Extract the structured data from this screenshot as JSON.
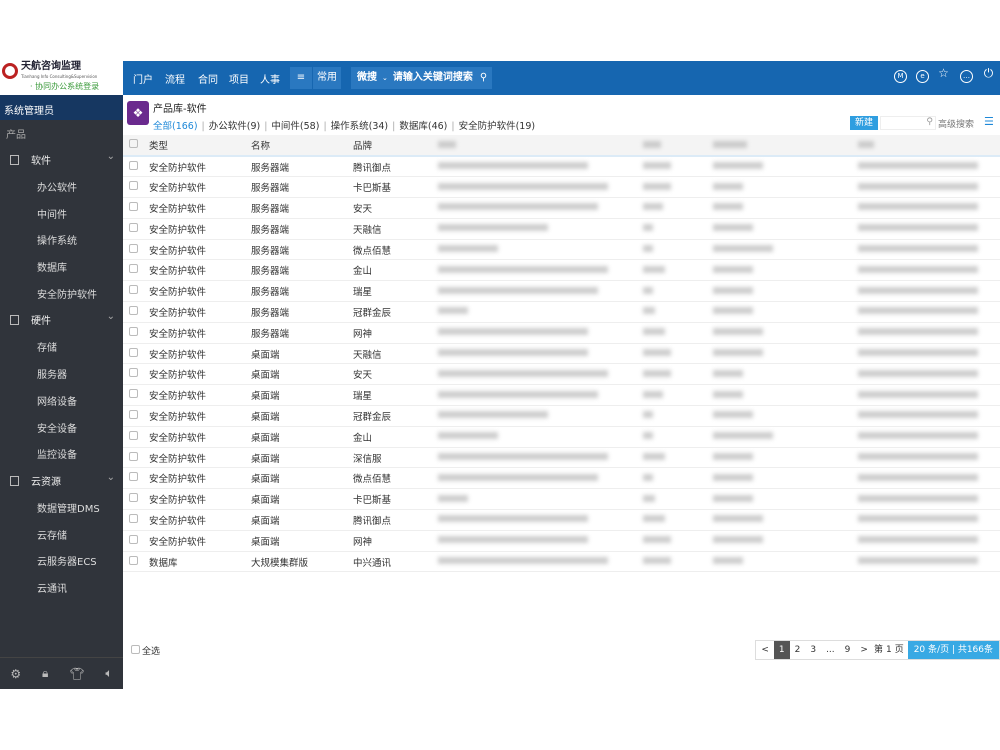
{
  "logo": {
    "name": "天航咨询监理",
    "subtitle": "Tianhang Info Consulting&Supervision",
    "tagline": "· 协同办公系统登录"
  },
  "topnav": {
    "items": [
      "门户",
      "流程",
      "合同",
      "项目",
      "人事"
    ],
    "menu_icon": "list-icon",
    "common": "常用",
    "search_scope": "微搜",
    "search_placeholder": "请输入关键词搜索",
    "right_icons": [
      "m-icon",
      "e-icon",
      "star-icon",
      "message-icon",
      "power-icon"
    ]
  },
  "sidebar": {
    "user": "系统管理员",
    "section": "产品",
    "groups": [
      {
        "label": "软件",
        "items": [
          "办公软件",
          "中间件",
          "操作系统",
          "数据库",
          "安全防护软件"
        ]
      },
      {
        "label": "硬件",
        "items": [
          "存储",
          "服务器",
          "网络设备",
          "安全设备",
          "监控设备"
        ]
      },
      {
        "label": "云资源",
        "items": [
          "数据管理DMS",
          "云存储",
          "云服务器ECS",
          "云通讯"
        ]
      }
    ],
    "bottom_icons": [
      "settings-icon",
      "lock-icon",
      "shirt-icon",
      "speaker-icon"
    ]
  },
  "page": {
    "title": "产品库-软件",
    "tabs": [
      "全部(166)",
      "办公软件(9)",
      "中间件(58)",
      "操作系统(34)",
      "数据库(46)",
      "安全防护软件(19)"
    ],
    "new_label": "新建",
    "adv_search": "高级搜索"
  },
  "table": {
    "headers": [
      "类型",
      "名称",
      "品牌"
    ],
    "rows": [
      [
        "安全防护软件",
        "服务器端",
        "腾讯御点"
      ],
      [
        "安全防护软件",
        "服务器端",
        "卡巴斯基"
      ],
      [
        "安全防护软件",
        "服务器端",
        "安天"
      ],
      [
        "安全防护软件",
        "服务器端",
        "天融信"
      ],
      [
        "安全防护软件",
        "服务器端",
        "微点佰慧"
      ],
      [
        "安全防护软件",
        "服务器端",
        "金山"
      ],
      [
        "安全防护软件",
        "服务器端",
        "瑞星"
      ],
      [
        "安全防护软件",
        "服务器端",
        "冠群金辰"
      ],
      [
        "安全防护软件",
        "服务器端",
        "网神"
      ],
      [
        "安全防护软件",
        "桌面端",
        "天融信"
      ],
      [
        "安全防护软件",
        "桌面端",
        "安天"
      ],
      [
        "安全防护软件",
        "桌面端",
        "瑞星"
      ],
      [
        "安全防护软件",
        "桌面端",
        "冠群金辰"
      ],
      [
        "安全防护软件",
        "桌面端",
        "金山"
      ],
      [
        "安全防护软件",
        "桌面端",
        "深信服"
      ],
      [
        "安全防护软件",
        "桌面端",
        "微点佰慧"
      ],
      [
        "安全防护软件",
        "桌面端",
        "卡巴斯基"
      ],
      [
        "安全防护软件",
        "桌面端",
        "腾讯御点"
      ],
      [
        "安全防护软件",
        "桌面端",
        "网神"
      ],
      [
        "数据库",
        "大规模集群版",
        "中兴通讯"
      ]
    ]
  },
  "footer": {
    "select_all": "全选",
    "pager": {
      "prev": "<",
      "pages": [
        "1",
        "2",
        "3",
        "...",
        "9"
      ],
      "current": "1",
      "next": ">",
      "goto_prefix": "第",
      "goto_page": "1",
      "goto_suffix": "页",
      "per_page": "20",
      "summary": "条/页 | 共166条"
    }
  }
}
